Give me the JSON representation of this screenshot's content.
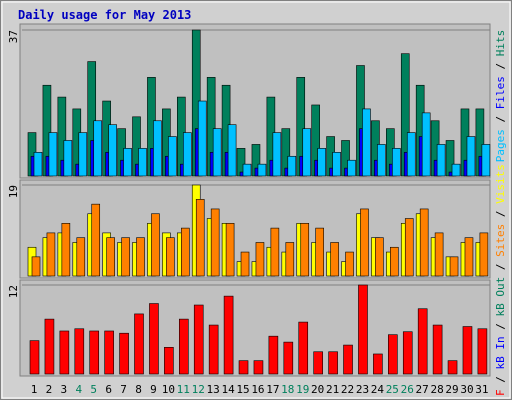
{
  "legend_separator": " / ",
  "chart_data": [
    {
      "type": "bar",
      "title": "Daily usage for May 2013",
      "categories": [
        "1",
        "2",
        "3",
        "4",
        "5",
        "6",
        "7",
        "8",
        "9",
        "10",
        "11",
        "12",
        "13",
        "14",
        "15",
        "16",
        "17",
        "18",
        "19",
        "20",
        "21",
        "22",
        "23",
        "24",
        "25",
        "26",
        "27",
        "28",
        "29",
        "30",
        "31"
      ],
      "category_colors": [
        "#000000",
        "#000000",
        "#000000",
        "#00805c",
        "#00805c",
        "#000000",
        "#000000",
        "#000000",
        "#000000",
        "#000000",
        "#00805c",
        "#00805c",
        "#000000",
        "#000000",
        "#000000",
        "#000000",
        "#000000",
        "#00805c",
        "#00805c",
        "#000000",
        "#000000",
        "#000000",
        "#000000",
        "#000000",
        "#00805c",
        "#00805c",
        "#000000",
        "#000000",
        "#000000",
        "#000000",
        "#000000"
      ],
      "ylim": [
        0,
        37
      ],
      "yticks": [
        37
      ],
      "series": [
        {
          "name": "Hits",
          "color": "#00805c",
          "values": [
            11,
            23,
            20,
            17,
            29,
            19,
            12,
            15,
            25,
            17,
            20,
            37,
            25,
            23,
            7,
            8,
            20,
            12,
            25,
            18,
            10,
            9,
            28,
            14,
            12,
            31,
            23,
            14,
            9,
            17,
            17
          ]
        },
        {
          "name": "Files",
          "color": "#0000ff",
          "values": [
            5,
            5,
            4,
            3,
            9,
            6,
            4,
            3,
            7,
            5,
            3,
            12,
            6,
            6,
            1,
            2,
            4,
            2,
            5,
            4,
            2,
            2,
            12,
            4,
            3,
            6,
            10,
            4,
            1,
            4,
            5
          ]
        },
        {
          "name": "Pages",
          "color": "#00c0ff",
          "values": [
            6,
            11,
            9,
            11,
            14,
            13,
            7,
            7,
            14,
            10,
            11,
            19,
            12,
            13,
            3,
            3,
            11,
            5,
            12,
            7,
            6,
            4,
            17,
            8,
            7,
            11,
            16,
            8,
            3,
            10,
            8
          ]
        }
      ]
    },
    {
      "type": "bar",
      "ylim": [
        0,
        19
      ],
      "yticks": [
        19
      ],
      "series": [
        {
          "name": "Visits",
          "color": "#ffff00",
          "values": [
            6,
            8,
            9,
            7,
            13,
            9,
            7,
            7,
            11,
            9,
            9,
            19,
            12,
            11,
            3,
            3,
            6,
            5,
            11,
            7,
            5,
            3,
            13,
            8,
            5,
            11,
            13,
            8,
            4,
            7,
            7
          ]
        },
        {
          "name": "Sites",
          "color": "#ff8000",
          "values": [
            4,
            9,
            11,
            8,
            15,
            8,
            8,
            8,
            13,
            8,
            10,
            16,
            14,
            11,
            5,
            7,
            10,
            7,
            11,
            10,
            7,
            5,
            14,
            8,
            6,
            12,
            14,
            9,
            4,
            8,
            9
          ]
        }
      ]
    },
    {
      "type": "bar",
      "ylim": [
        0,
        12
      ],
      "yticks": [
        12
      ],
      "series": [
        {
          "name": "kB F",
          "color": "#ff0000",
          "values": [
            4.5,
            7.4,
            5.8,
            6.1,
            5.8,
            5.8,
            5.5,
            8.1,
            9.5,
            3.6,
            7.4,
            9.3,
            6.6,
            10.5,
            1.8,
            1.8,
            5.1,
            4.3,
            7,
            3,
            3,
            3.9,
            12,
            2.7,
            5.3,
            5.7,
            8.8,
            6.6,
            1.8,
            6.4,
            6.1
          ]
        }
      ],
      "extra_legend": [
        {
          "name": "kB In",
          "color": "#0000ff"
        },
        {
          "name": "kB Out",
          "color": "#00805c"
        }
      ]
    }
  ]
}
